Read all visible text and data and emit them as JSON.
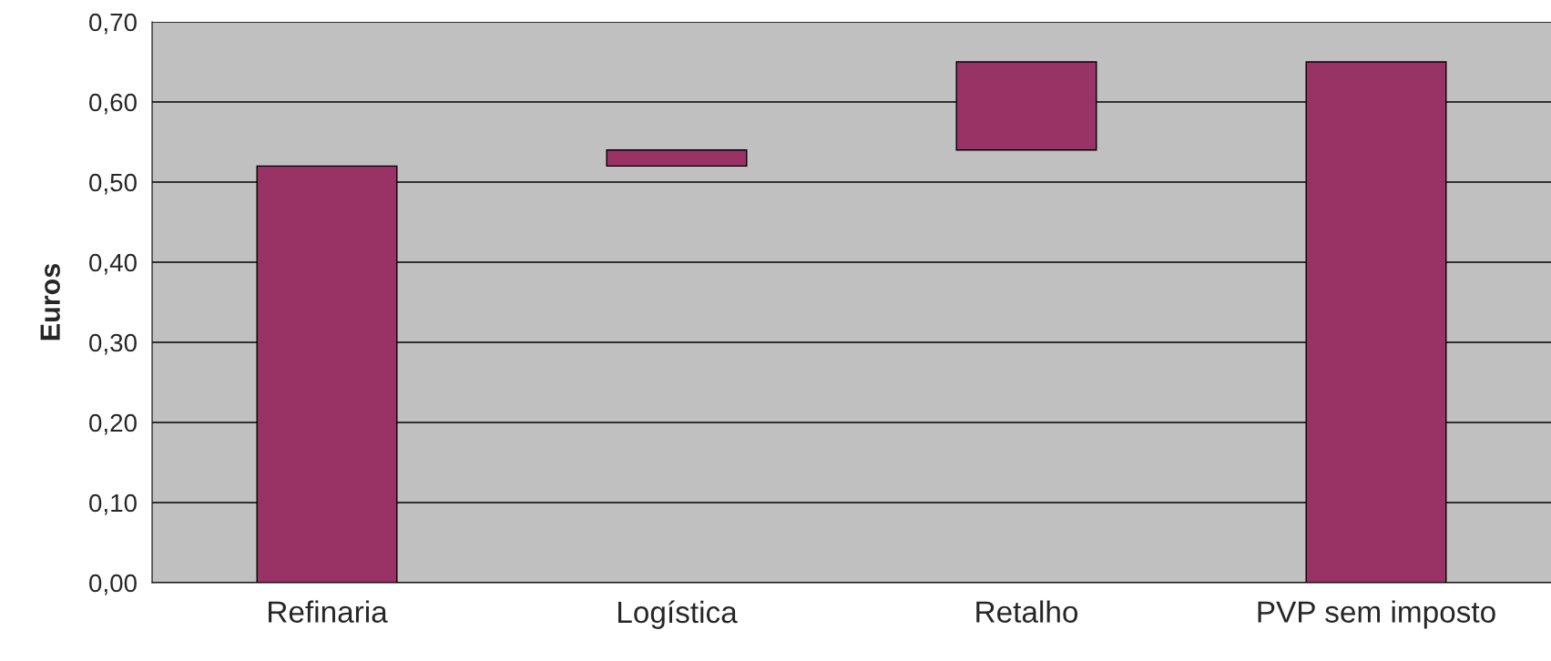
{
  "chart_data": {
    "type": "bar",
    "ylabel": "Euros",
    "categories": [
      "Refinaria",
      "Logística",
      "Retalho",
      "PVP sem imposto"
    ],
    "values": [
      0.52,
      0.02,
      0.11,
      0.65
    ],
    "base": [
      0,
      0.52,
      0.54,
      0
    ],
    "color": "#993366",
    "ylim": [
      0,
      0.7
    ],
    "yticks": [
      {
        "value": 0,
        "label": "0,00"
      },
      {
        "value": 0.1,
        "label": "0,10"
      },
      {
        "value": 0.2,
        "label": "0,20"
      },
      {
        "value": 0.3,
        "label": "0,30"
      },
      {
        "value": 0.4,
        "label": "0,40"
      },
      {
        "value": 0.5,
        "label": "0,50"
      },
      {
        "value": 0.6,
        "label": "0,60"
      },
      {
        "value": 0.7,
        "label": "0,70"
      }
    ],
    "grid": "y",
    "legend": false
  }
}
